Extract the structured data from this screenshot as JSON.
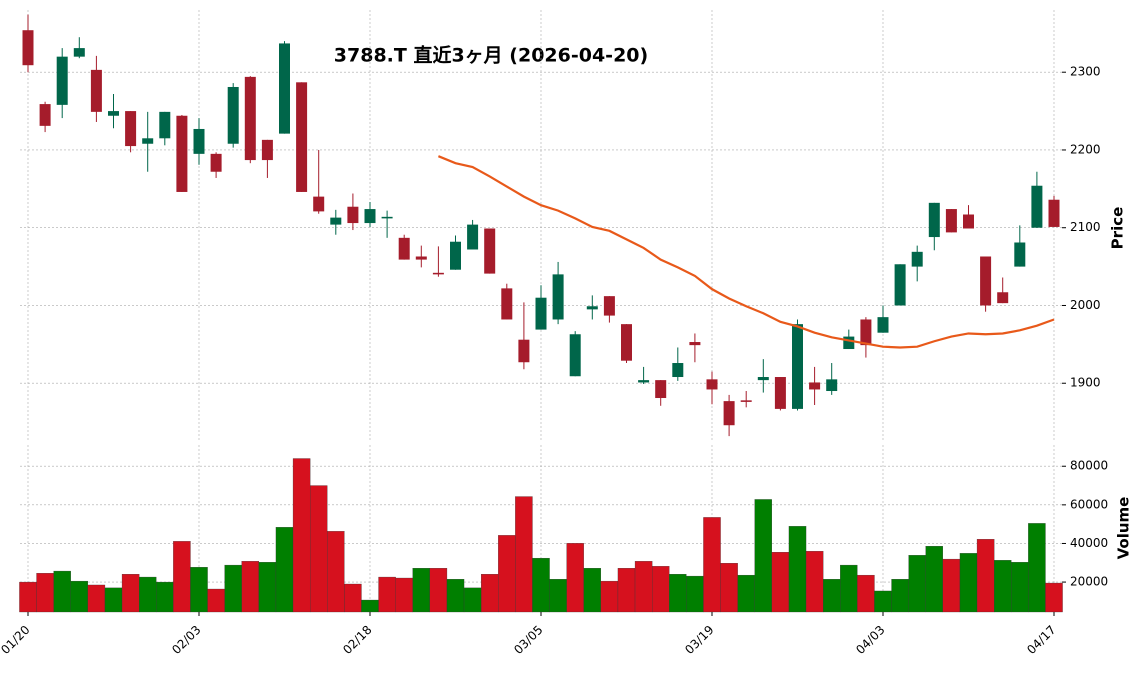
{
  "chart_data": {
    "type": "candlestick",
    "title": "3788.T  直近3ヶ月  (2026-04-20)",
    "y_label": "Price",
    "categories": [
      "01/20",
      null,
      null,
      null,
      null,
      null,
      null,
      null,
      null,
      null,
      "02/03",
      null,
      null,
      null,
      null,
      null,
      null,
      null,
      null,
      null,
      "02/18",
      null,
      null,
      null,
      null,
      null,
      null,
      null,
      null,
      null,
      "03/05",
      null,
      null,
      null,
      null,
      null,
      null,
      null,
      null,
      null,
      "03/19",
      null,
      null,
      null,
      null,
      null,
      null,
      null,
      null,
      null,
      "04/03",
      null,
      null,
      null,
      null,
      null,
      null,
      null,
      null,
      null,
      "04/17"
    ],
    "open": [
      2354,
      2259,
      2258,
      2320,
      2303,
      2244,
      2250,
      2208,
      2215,
      2244,
      2195,
      2195,
      2208,
      2294,
      2213,
      2221,
      2287,
      2140,
      2104,
      2127,
      2106,
      2112,
      2087,
      2063,
      2042,
      2046,
      2072,
      2099,
      2022,
      1956,
      1969,
      1982,
      1909,
      1995,
      2012,
      1976,
      1901,
      1904,
      1908,
      1953,
      1905,
      1877,
      1878,
      1904,
      1908,
      1867,
      1901,
      1890,
      1944,
      1982,
      1965,
      2000,
      2050,
      2088,
      2124,
      2117,
      2063,
      2017,
      2050,
      2100,
      2136
    ],
    "high": [
      2374,
      2262,
      2331,
      2345,
      2321,
      2272,
      2250,
      2249,
      2249,
      2245,
      2241,
      2197,
      2286,
      2295,
      2213,
      2340,
      2287,
      2200,
      2123,
      2144,
      2133,
      2122,
      2091,
      2077,
      2076,
      2090,
      2110,
      2099,
      2028,
      2004,
      2026,
      2056,
      1967,
      2013,
      2012,
      1976,
      1921,
      1904,
      1946,
      1964,
      1915,
      1885,
      1890,
      1931,
      1908,
      1982,
      1921,
      1926,
      1969,
      1985,
      2000,
      2053,
      2077,
      2132,
      2124,
      2129,
      2063,
      2036,
      2103,
      2172,
      2141
    ],
    "low": [
      2300,
      2223,
      2241,
      2318,
      2236,
      2228,
      2197,
      2172,
      2206,
      2146,
      2181,
      2164,
      2203,
      2183,
      2164,
      2221,
      2146,
      2118,
      2091,
      2097,
      2101,
      2087,
      2059,
      2049,
      2037,
      2046,
      2072,
      2041,
      1982,
      1918,
      1969,
      1976,
      1909,
      1982,
      1978,
      1926,
      1899,
      1871,
      1903,
      1927,
      1873,
      1832,
      1869,
      1888,
      1865,
      1865,
      1872,
      1885,
      1944,
      1933,
      1965,
      2000,
      2031,
      2071,
      2094,
      2099,
      1992,
      2003,
      2050,
      2100,
      2101
    ],
    "close": [
      2309,
      2231,
      2320,
      2331,
      2249,
      2250,
      2205,
      2215,
      2249,
      2146,
      2227,
      2172,
      2281,
      2187,
      2187,
      2337,
      2146,
      2121,
      2113,
      2106,
      2124,
      2114,
      2059,
      2059,
      2040,
      2082,
      2104,
      2041,
      1982,
      1927,
      2010,
      2040,
      1963,
      1999,
      1987,
      1929,
      1904,
      1881,
      1926,
      1949,
      1892,
      1846,
      1876,
      1908,
      1867,
      1976,
      1892,
      1905,
      1960,
      1949,
      1985,
      2053,
      2069,
      2132,
      2094,
      2099,
      2000,
      2003,
      2081,
      2154,
      2101
    ],
    "up_color": "#00664a",
    "down_color": "#a51c2b",
    "moving_average": {
      "color": "#e8591a",
      "values": [
        null,
        null,
        null,
        null,
        null,
        null,
        null,
        null,
        null,
        null,
        null,
        null,
        null,
        null,
        null,
        null,
        null,
        null,
        null,
        null,
        null,
        null,
        null,
        null,
        2192,
        2183,
        2178,
        2166,
        2153,
        2140,
        2129,
        2122,
        2112,
        2101,
        2096,
        2085,
        2074,
        2059,
        2049,
        2038,
        2021,
        2009,
        1999,
        1990,
        1979,
        1973,
        1965,
        1959,
        1955,
        1951,
        1947,
        1946,
        1947,
        1954,
        1960,
        1964,
        1963,
        1964,
        1968,
        1974,
        1982
      ]
    },
    "ylim": [
      1827,
      2380
    ],
    "yticks": [
      1900,
      2000,
      2100,
      2200,
      2300
    ],
    "grid": true,
    "volume": {
      "label": "Volume",
      "up_color": "#007f00",
      "down_color": "#d6111e",
      "values": [
        20000,
        24600,
        25700,
        20500,
        18500,
        17000,
        24100,
        22600,
        20000,
        41100,
        27700,
        16400,
        28800,
        30800,
        30300,
        48400,
        84000,
        70000,
        46300,
        19000,
        10700,
        22600,
        22100,
        27200,
        27200,
        21500,
        17000,
        24100,
        44200,
        64300,
        32400,
        21500,
        40100,
        27200,
        20500,
        27200,
        30800,
        28200,
        24100,
        23100,
        53500,
        29800,
        23600,
        62800,
        35500,
        48900,
        36000,
        21500,
        28800,
        23600,
        15400,
        21500,
        33900,
        38600,
        31900,
        34900,
        42200,
        31300,
        30300,
        50400,
        19500
      ],
      "ylim": [
        4500,
        91000
      ],
      "yticks": [
        20000,
        40000,
        60000,
        80000
      ]
    }
  }
}
